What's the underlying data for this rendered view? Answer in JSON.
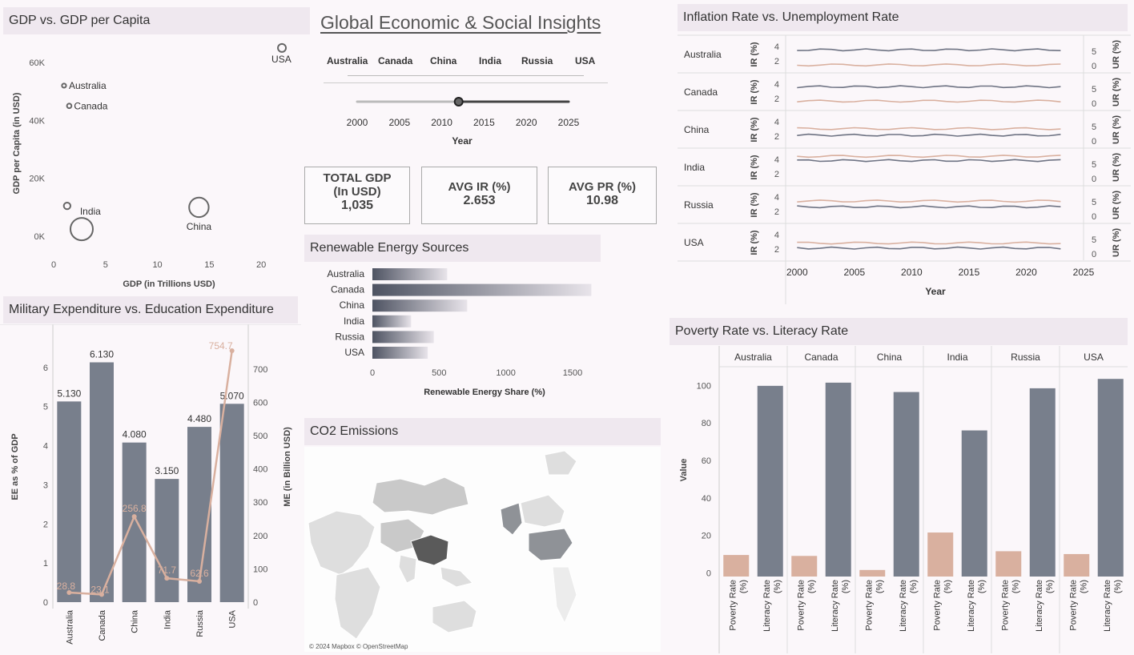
{
  "dashboard": {
    "title": "Global Economic & Social Insights",
    "country_filter": [
      "Australia",
      "Canada",
      "China",
      "India",
      "Russia",
      "USA"
    ],
    "year_slider": {
      "label": "Year",
      "ticks": [
        "2000",
        "2005",
        "2010",
        "2015",
        "2020",
        "2025"
      ],
      "value": 2012
    },
    "map_credit": "© 2024 Mapbox © OpenStreetMap"
  },
  "kpis": [
    {
      "label_line1": "TOTAL GDP",
      "label_line2": "(In USD)",
      "value": "1,035"
    },
    {
      "label_line1": "AVG IR (%)",
      "label_line2": "",
      "value": "2.653"
    },
    {
      "label_line1": "AVG PR (%)",
      "label_line2": "",
      "value": "10.98"
    }
  ],
  "panels": {
    "gdp": "GDP vs. GDP per Capita",
    "military": "Military Expenditure vs. Education Expenditure",
    "renewable": "Renewable Energy Sources",
    "co2": "CO2 Emissions",
    "inflation": "Inflation Rate vs. Unemployment Rate",
    "poverty": "Poverty Rate vs. Literacy Rate"
  },
  "colors": {
    "bar": "#787f8c",
    "accent": "#d9b09f",
    "line_dark": "#6e7383",
    "header_bg": "#efe8ef",
    "page_bg": "#fbf7fa"
  },
  "chart_data": [
    {
      "id": "gdp_scatter",
      "type": "scatter",
      "xlabel": "GDP (in Trillions USD)",
      "ylabel": "GDP per Capita (in USD)",
      "xlim": [
        0,
        23
      ],
      "ylim": [
        -3000,
        68000
      ],
      "x_ticks": [
        "0",
        "5",
        "10",
        "15",
        "20"
      ],
      "y_ticks": [
        "0K",
        "20K",
        "40K",
        "60K"
      ],
      "points": [
        {
          "name": "USA",
          "x": 22,
          "y": 65000,
          "size": 0.25
        },
        {
          "name": "Australia",
          "x": 1,
          "y": 52000,
          "size": 0.05
        },
        {
          "name": "Canada",
          "x": 1.5,
          "y": 45000,
          "size": 0.07
        },
        {
          "name": "India",
          "x": 1.3,
          "y": 10500,
          "size": 0.18
        },
        {
          "name": "",
          "x": 2.7,
          "y": 2500,
          "size": 1.0
        },
        {
          "name": "China",
          "x": 14,
          "y": 10000,
          "size": 0.85
        }
      ]
    },
    {
      "id": "military_education",
      "type": "bar",
      "categories": [
        "Australia",
        "Canada",
        "China",
        "India",
        "Russia",
        "USA"
      ],
      "series": [
        {
          "name": "EE as % of GDP",
          "values": [
            5.13,
            6.13,
            4.08,
            3.15,
            4.48,
            5.07
          ],
          "labels": [
            "5.130",
            "6.130",
            "4.080",
            "3.150",
            "4.480",
            "5.070"
          ]
        },
        {
          "name": "ME (in Billion USD)",
          "type": "line",
          "values": [
            28.8,
            23.1,
            256.8,
            71.7,
            62.6,
            754.7
          ],
          "labels": [
            "28.8",
            "23.1",
            "256.8",
            "71.7",
            "62.6",
            "754.7"
          ]
        }
      ],
      "ylabel": "EE as % of GDP",
      "y2label": "ME (in Billion USD)",
      "ylim": [
        0,
        7
      ],
      "y_ticks": [
        "0",
        "1",
        "2",
        "3",
        "4",
        "5",
        "6"
      ],
      "y2lim": [
        0,
        822
      ],
      "y2_ticks": [
        "0",
        "100",
        "200",
        "300",
        "400",
        "500",
        "600",
        "700"
      ]
    },
    {
      "id": "renewable",
      "type": "bar",
      "orientation": "horizontal",
      "categories": [
        "Australia",
        "Canada",
        "China",
        "India",
        "Russia",
        "USA"
      ],
      "values": [
        560,
        1640,
        710,
        290,
        460,
        415
      ],
      "xlabel": "Renewable Energy Share (%)",
      "xlim": [
        0,
        1650
      ],
      "x_ticks": [
        "0",
        "500",
        "1000",
        "1500"
      ]
    },
    {
      "id": "inflation_unemployment",
      "type": "line",
      "categories": [
        "Australia",
        "Canada",
        "China",
        "India",
        "Russia",
        "USA"
      ],
      "xlabel": "Year",
      "x_ticks": [
        "2000",
        "2005",
        "2010",
        "2015",
        "2020",
        "2025"
      ],
      "xlim": [
        1999,
        2025
      ],
      "y_ticks": [
        "2",
        "4"
      ],
      "y2_ticks": [
        "0",
        "5"
      ],
      "ylabel_rows": "IR (%)",
      "y2label_rows": "UR (%)",
      "series_ir": [
        3.7,
        3.8,
        2.3,
        4.0,
        2.8,
        2.3
      ],
      "series_ur": [
        1.6,
        1.8,
        3.2,
        4.6,
        3.6,
        3.0
      ]
    },
    {
      "id": "poverty_literacy",
      "type": "bar",
      "categories": [
        "Australia",
        "Canada",
        "China",
        "India",
        "Russia",
        "USA"
      ],
      "series": [
        {
          "name": "Poverty Rate (%)",
          "values": [
            9.5,
            9,
            1.5,
            21.5,
            11.5,
            10
          ]
        },
        {
          "name": "Literacy Rate (%)",
          "values": [
            99.8,
            101.5,
            96.5,
            76,
            98.5,
            103.5
          ]
        }
      ],
      "ylabel": "Value",
      "ylim": [
        -2,
        110
      ],
      "y_ticks": [
        "0",
        "20",
        "40",
        "60",
        "80",
        "100"
      ],
      "sub_labels": [
        "Poverty Rate (%)",
        "Literacy Rate (%)"
      ]
    }
  ]
}
